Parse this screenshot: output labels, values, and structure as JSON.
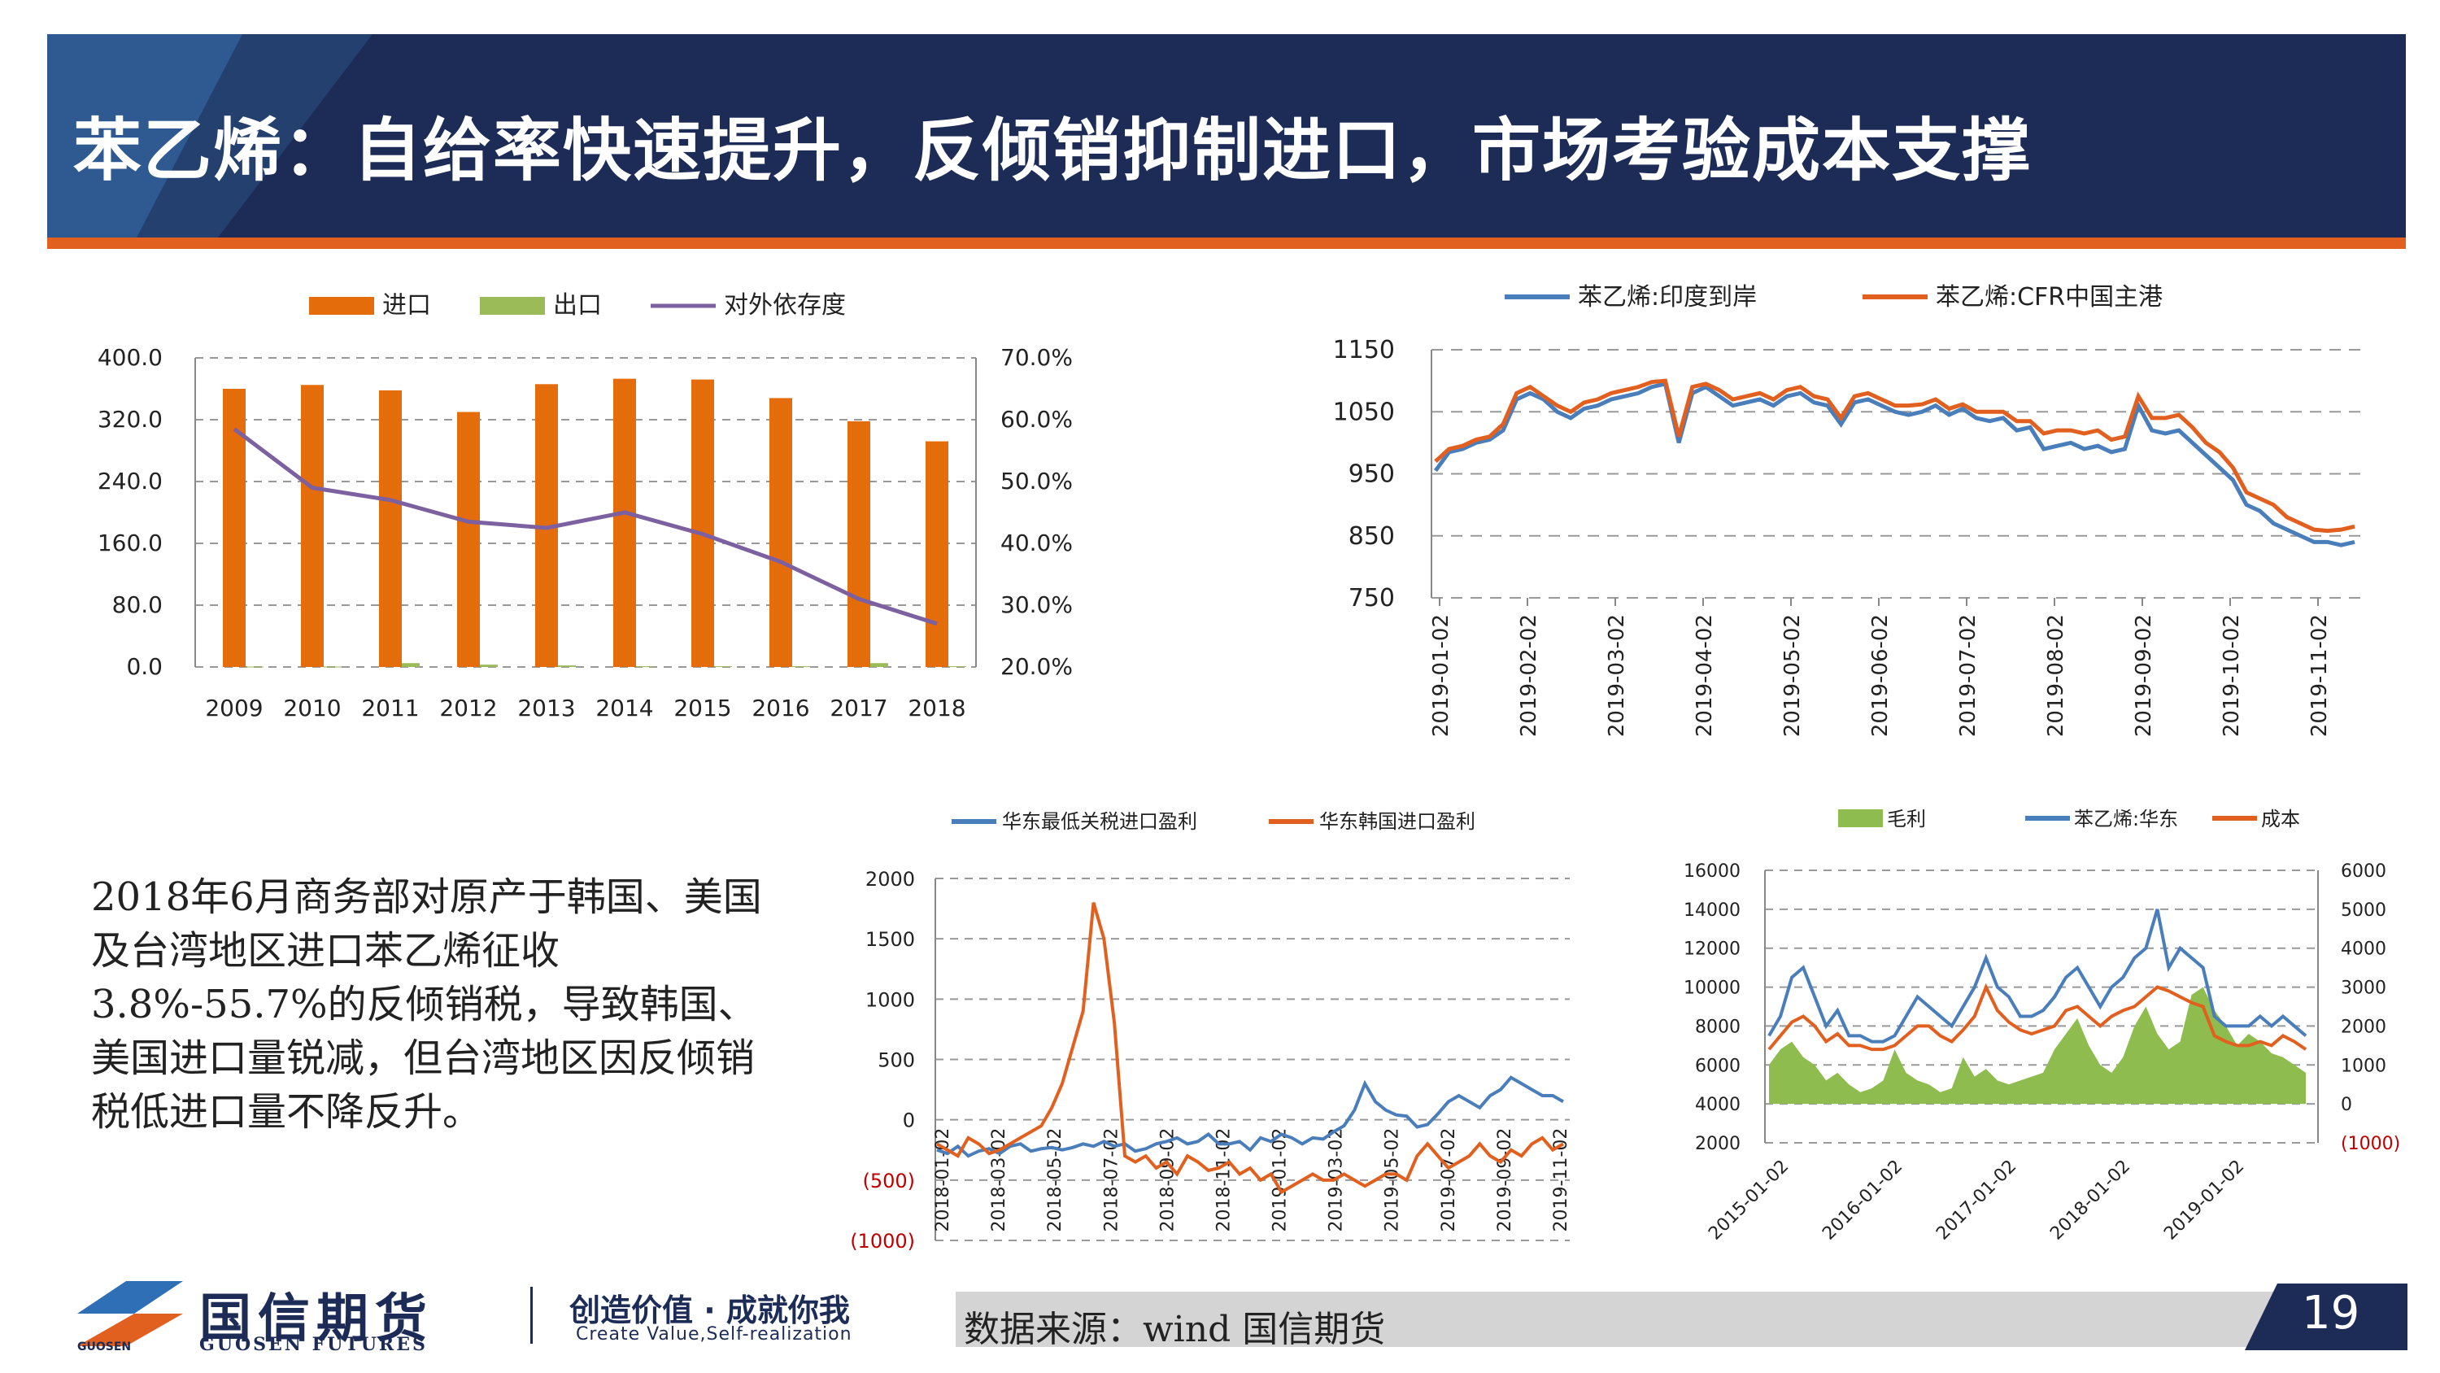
{
  "header": {
    "title": "苯乙烯：自给率快速提升，反倾销抑制进口，市场考验成本支撑"
  },
  "note": {
    "text": "2018年6月商务部对原产于韩国、美国及台湾地区进口苯乙烯征收3.8%-55.7%的反倾销税，导致韩国、美国进口量锐减，但台湾地区因反倾销税低进口量不降反升。"
  },
  "footer": {
    "logo_name": "国信期货",
    "logo_en": "GUOSEN FUTURES",
    "logo_tag": "GUOSEN",
    "slogan_cn": "创造价值 · 成就你我",
    "slogan_en": "Create Value,Self-realization",
    "source": "数据来源：wind   国信期货",
    "page": "19"
  },
  "colors": {
    "navy": "#1d2b57",
    "orange": "#e2601f",
    "blue": "#4a7ebb",
    "bar_orange": "#e46c0a",
    "bar_green": "#9bbb59",
    "purple": "#7d60a0",
    "green_fill": "#8fbc4f"
  },
  "chart_data": [
    {
      "type": "bar",
      "categories": [
        "2009",
        "2010",
        "2011",
        "2012",
        "2013",
        "2014",
        "2015",
        "2016",
        "2017",
        "2018"
      ],
      "series": [
        {
          "name": "进口",
          "values": [
            360,
            365,
            358,
            330,
            366,
            373,
            372,
            348,
            318,
            292
          ]
        },
        {
          "name": "出口",
          "values": [
            0.5,
            0.5,
            5,
            3,
            2,
            1,
            1,
            1,
            5,
            1
          ]
        },
        {
          "name": "对外依存度",
          "type": "line",
          "axis": "right",
          "values": [
            58.5,
            49.0,
            47.0,
            43.5,
            42.5,
            45.0,
            41.5,
            37.0,
            31.0,
            27.0
          ]
        }
      ],
      "y_ticks": [
        "0.0",
        "80.0",
        "160.0",
        "240.0",
        "320.0",
        "400.0"
      ],
      "y2_ticks": [
        "20.0%",
        "30.0%",
        "40.0%",
        "50.0%",
        "60.0%",
        "70.0%"
      ],
      "ylim": [
        0,
        400
      ],
      "y2lim": [
        20,
        70
      ],
      "legend": "top"
    },
    {
      "type": "line",
      "series": [
        {
          "name": "苯乙烯:印度到岸",
          "values": [
            955,
            985,
            990,
            1000,
            1005,
            1020,
            1070,
            1080,
            1070,
            1050,
            1040,
            1055,
            1060,
            1070,
            1075,
            1080,
            1090,
            1095,
            1000,
            1080,
            1090,
            1075,
            1060,
            1065,
            1070,
            1060,
            1075,
            1080,
            1065,
            1060,
            1030,
            1065,
            1070,
            1060,
            1050,
            1045,
            1050,
            1060,
            1045,
            1055,
            1040,
            1035,
            1040,
            1020,
            1025,
            990,
            995,
            1000,
            990,
            995,
            985,
            990,
            1060,
            1020,
            1015,
            1020,
            1000,
            980,
            960,
            940,
            900,
            890,
            870,
            860,
            850,
            840,
            840,
            835,
            840
          ]
        },
        {
          "name": "苯乙烯:CFR中国主港",
          "values": [
            970,
            990,
            995,
            1005,
            1010,
            1030,
            1080,
            1090,
            1075,
            1060,
            1050,
            1065,
            1070,
            1080,
            1085,
            1090,
            1098,
            1100,
            1010,
            1090,
            1095,
            1085,
            1070,
            1075,
            1080,
            1070,
            1085,
            1090,
            1075,
            1070,
            1040,
            1075,
            1080,
            1070,
            1060,
            1060,
            1062,
            1070,
            1055,
            1062,
            1050,
            1050,
            1050,
            1035,
            1035,
            1015,
            1020,
            1020,
            1015,
            1020,
            1005,
            1010,
            1075,
            1040,
            1040,
            1045,
            1025,
            1000,
            985,
            960,
            920,
            910,
            900,
            880,
            870,
            860,
            858,
            860,
            865
          ]
        },
        {
          "name": "",
          "values": []
        }
      ],
      "x_ticks": [
        "2019-01-02",
        "2019-02-02",
        "2019-03-02",
        "2019-04-02",
        "2019-05-02",
        "2019-06-02",
        "2019-07-02",
        "2019-08-02",
        "2019-09-02",
        "2019-10-02",
        "2019-11-02"
      ],
      "y_ticks": [
        "750",
        "850",
        "950",
        "1050",
        "1150"
      ],
      "ylim": [
        750,
        1150
      ],
      "legend": "top"
    },
    {
      "type": "line",
      "series": [
        {
          "name": "华东最低关税进口盈利",
          "values": [
            -250,
            -280,
            -220,
            -300,
            -260,
            -240,
            -280,
            -220,
            -200,
            -260,
            -240,
            -230,
            -250,
            -230,
            -200,
            -220,
            -180,
            -220,
            -200,
            -260,
            -240,
            -200,
            -180,
            -150,
            -200,
            -180,
            -120,
            -200,
            -200,
            -180,
            -250,
            -150,
            -180,
            -120,
            -150,
            -200,
            -150,
            -160,
            -100,
            -50,
            80,
            300,
            150,
            80,
            40,
            30,
            -60,
            -40,
            50,
            150,
            200,
            150,
            100,
            200,
            250,
            350,
            300,
            250,
            200,
            200,
            150
          ]
        },
        {
          "name": "华东韩国进口盈利",
          "values": [
            -200,
            -250,
            -300,
            -150,
            -200,
            -280,
            -250,
            -200,
            -150,
            -100,
            -50,
            100,
            300,
            600,
            900,
            1800,
            1500,
            800,
            -300,
            -350,
            -300,
            -400,
            -350,
            -450,
            -300,
            -350,
            -420,
            -400,
            -350,
            -450,
            -400,
            -500,
            -450,
            -600,
            -550,
            -500,
            -450,
            -500,
            -500,
            -450,
            -500,
            -550,
            -500,
            -450,
            -450,
            -500,
            -300,
            -200,
            -300,
            -400,
            -350,
            -300,
            -200,
            -300,
            -350,
            -250,
            -300,
            -200,
            -150,
            -250,
            -200
          ]
        }
      ],
      "x_ticks": [
        "2018-01-02",
        "2018-03-02",
        "2018-05-02",
        "2018-07-02",
        "2018-09-02",
        "2018-11-02",
        "2019-01-02",
        "2019-03-02",
        "2019-05-02",
        "2019-07-02",
        "2019-09-02",
        "2019-11-02"
      ],
      "y_ticks": [
        "(1000)",
        "(500)",
        "0",
        "500",
        "1000",
        "1500",
        "2000"
      ],
      "ylim": [
        -1000,
        2000
      ],
      "legend": "top"
    },
    {
      "type": "area",
      "series": [
        {
          "name": "毛利",
          "type": "area",
          "axis": "right",
          "values": [
            1000,
            1400,
            1600,
            1200,
            1000,
            600,
            800,
            500,
            300,
            400,
            600,
            1400,
            800,
            600,
            500,
            300,
            400,
            1200,
            700,
            900,
            600,
            500,
            600,
            700,
            800,
            1400,
            1800,
            2200,
            1500,
            1000,
            800,
            1200,
            2000,
            2500,
            1800,
            1400,
            1600,
            2800,
            3000,
            2400,
            2000,
            1500,
            1800,
            1600,
            1300,
            1200,
            1000,
            800
          ]
        },
        {
          "name": "苯乙烯:华东",
          "axis": "left",
          "values": [
            7500,
            8500,
            10500,
            11000,
            9500,
            8000,
            8800,
            7500,
            7500,
            7200,
            7200,
            7500,
            8500,
            9500,
            9000,
            8500,
            8000,
            9000,
            10000,
            11500,
            10000,
            9500,
            8500,
            8500,
            8800,
            9500,
            10500,
            11000,
            10000,
            9000,
            10000,
            10500,
            11500,
            12000,
            14000,
            11000,
            12000,
            11500,
            11000,
            8500,
            8000,
            8000,
            8000,
            8500,
            8000,
            8500,
            8000,
            7500
          ]
        },
        {
          "name": "成本",
          "axis": "left",
          "values": [
            6800,
            7500,
            8200,
            8500,
            8000,
            7200,
            7600,
            7000,
            7000,
            6800,
            6800,
            7000,
            7500,
            8000,
            8000,
            7500,
            7200,
            7800,
            8500,
            10000,
            8800,
            8200,
            7800,
            7600,
            7800,
            8000,
            8800,
            9000,
            8500,
            8000,
            8500,
            8800,
            9000,
            9500,
            10000,
            9800,
            9500,
            9200,
            9000,
            7500,
            7200,
            7000,
            7000,
            7200,
            7000,
            7500,
            7200,
            6800
          ]
        }
      ],
      "x_ticks": [
        "2015-01-02",
        "2016-01-02",
        "2017-01-02",
        "2018-01-02",
        "2019-01-02"
      ],
      "y_ticks": [
        "2000",
        "4000",
        "6000",
        "8000",
        "10000",
        "12000",
        "14000",
        "16000"
      ],
      "y2_ticks": [
        "(1000)",
        "0",
        "1000",
        "2000",
        "3000",
        "4000",
        "5000",
        "6000"
      ],
      "ylim": [
        2000,
        16000
      ],
      "y2lim": [
        -1000,
        6000
      ],
      "legend": "top"
    }
  ]
}
